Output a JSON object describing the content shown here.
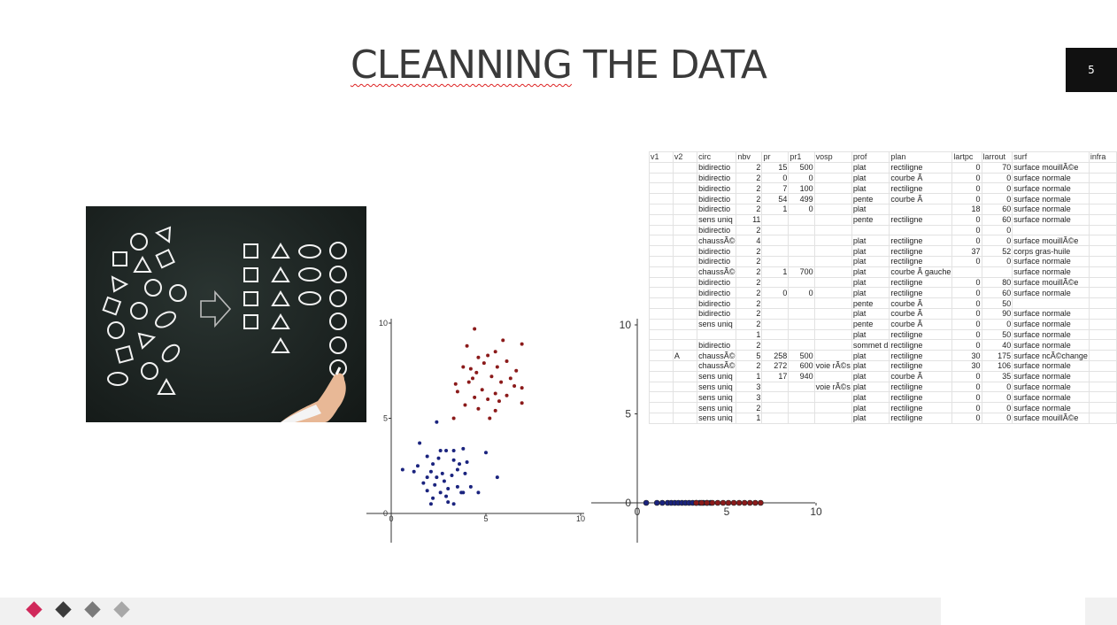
{
  "slide": {
    "title_part1": "CLEANNING",
    "title_part2": " THE DATA",
    "number": "5"
  },
  "spreadsheet": {
    "headers": [
      "v1",
      "v2",
      "circ",
      "nbv",
      "pr",
      "pr1",
      "vosp",
      "prof",
      "plan",
      "lartpc",
      "larrout",
      "surf",
      "infra"
    ],
    "rows": [
      [
        "",
        "",
        "bidirectio",
        "2",
        "15",
        "500",
        "",
        "plat",
        "rectiligne",
        "0",
        "70",
        "surface mouillÃ©e",
        ""
      ],
      [
        "",
        "",
        "bidirectio",
        "2",
        "0",
        "0",
        "",
        "plat",
        "courbe Ã",
        "0",
        "0",
        "surface normale",
        ""
      ],
      [
        "",
        "",
        "bidirectio",
        "2",
        "7",
        "100",
        "",
        "plat",
        "rectiligne",
        "0",
        "0",
        "surface normale",
        ""
      ],
      [
        "",
        "",
        "bidirectio",
        "2",
        "54",
        "499",
        "",
        "pente",
        "courbe Ã",
        "0",
        "0",
        "surface normale",
        ""
      ],
      [
        "",
        "",
        "bidirectio",
        "2",
        "1",
        "0",
        "",
        "plat",
        "",
        "18",
        "60",
        "surface normale",
        ""
      ],
      [
        "",
        "",
        "sens uniq",
        "11",
        "",
        "",
        "",
        "pente",
        "rectiligne",
        "0",
        "60",
        "surface normale",
        ""
      ],
      [
        "",
        "",
        "bidirectio",
        "2",
        "",
        "",
        "",
        "",
        "",
        "0",
        "0",
        "",
        ""
      ],
      [
        "",
        "",
        "chaussÃ©",
        "4",
        "",
        "",
        "",
        "plat",
        "rectiligne",
        "0",
        "0",
        "surface mouillÃ©e",
        ""
      ],
      [
        "",
        "",
        "bidirectio",
        "2",
        "",
        "",
        "",
        "plat",
        "rectiligne",
        "37",
        "52",
        "corps gras-huile",
        ""
      ],
      [
        "",
        "",
        "bidirectio",
        "2",
        "",
        "",
        "",
        "plat",
        "rectiligne",
        "0",
        "0",
        "surface normale",
        ""
      ],
      [
        "",
        "",
        "chaussÃ©",
        "2",
        "1",
        "700",
        "",
        "plat",
        "courbe Ã  gauche",
        "",
        "",
        "surface normale",
        ""
      ],
      [
        "",
        "",
        "bidirectio",
        "2",
        "",
        "",
        "",
        "plat",
        "rectiligne",
        "0",
        "80",
        "surface mouillÃ©e",
        ""
      ],
      [
        "",
        "",
        "bidirectio",
        "2",
        "0",
        "0",
        "",
        "plat",
        "rectiligne",
        "0",
        "60",
        "surface normale",
        ""
      ],
      [
        "",
        "",
        "bidirectio",
        "2",
        "",
        "",
        "",
        "pente",
        "courbe Ã",
        "0",
        "50",
        "",
        ""
      ],
      [
        "",
        "",
        "bidirectio",
        "2",
        "",
        "",
        "",
        "plat",
        "courbe Ã",
        "0",
        "90",
        "surface normale",
        ""
      ],
      [
        "",
        "",
        "sens uniq",
        "2",
        "",
        "",
        "",
        "pente",
        "courbe Ã",
        "0",
        "0",
        "surface normale",
        ""
      ],
      [
        "",
        "",
        "",
        "1",
        "",
        "",
        "",
        "plat",
        "rectiligne",
        "0",
        "50",
        "surface normale",
        ""
      ],
      [
        "",
        "",
        "bidirectio",
        "2",
        "",
        "",
        "",
        "sommet d",
        "rectiligne",
        "0",
        "40",
        "surface normale",
        ""
      ],
      [
        "",
        "A",
        "chaussÃ©",
        "5",
        "258",
        "500",
        "",
        "plat",
        "rectiligne",
        "30",
        "175",
        "surface ncÃ©change",
        ""
      ],
      [
        "",
        "",
        "chaussÃ©",
        "2",
        "272",
        "600",
        "voie rÃ©s",
        "plat",
        "rectiligne",
        "30",
        "106",
        "surface normale",
        ""
      ],
      [
        "",
        "",
        "sens uniq",
        "1",
        "17",
        "940",
        "",
        "plat",
        "courbe Ã",
        "0",
        "35",
        "surface normale",
        ""
      ],
      [
        "",
        "",
        "sens uniq",
        "3",
        "",
        "",
        "voie rÃ©s",
        "plat",
        "rectiligne",
        "0",
        "0",
        "surface normale",
        ""
      ],
      [
        "",
        "",
        "sens uniq",
        "3",
        "",
        "",
        "",
        "plat",
        "rectiligne",
        "0",
        "0",
        "surface normale",
        ""
      ],
      [
        "",
        "",
        "sens uniq",
        "2",
        "",
        "",
        "",
        "plat",
        "rectiligne",
        "0",
        "0",
        "surface normale",
        ""
      ],
      [
        "",
        "",
        "sens uniq",
        "1",
        "",
        "",
        "",
        "plat",
        "rectiligne",
        "0",
        "0",
        "surface mouillÃ©e",
        ""
      ]
    ]
  },
  "chart_data": [
    {
      "type": "scatter",
      "xticks": [
        "0",
        "5",
        "10"
      ],
      "yticks": [
        "0",
        "5",
        "10"
      ],
      "xlim": [
        0,
        10
      ],
      "ylim": [
        0,
        10
      ],
      "series": [
        {
          "color": "#8b1a1a",
          "points": [
            [
              4.4,
              9.7
            ],
            [
              4.0,
              8.8
            ],
            [
              5.9,
              9.1
            ],
            [
              6.9,
              8.9
            ],
            [
              4.6,
              8.2
            ],
            [
              5.5,
              8.5
            ],
            [
              5.1,
              8.3
            ],
            [
              6.1,
              8.0
            ],
            [
              4.9,
              7.9
            ],
            [
              3.8,
              7.7
            ],
            [
              4.2,
              7.6
            ],
            [
              5.6,
              7.7
            ],
            [
              6.6,
              7.5
            ],
            [
              4.5,
              7.4
            ],
            [
              5.3,
              7.2
            ],
            [
              6.3,
              7.1
            ],
            [
              3.4,
              6.8
            ],
            [
              4.1,
              6.9
            ],
            [
              5.8,
              6.9
            ],
            [
              6.5,
              6.7
            ],
            [
              3.5,
              6.4
            ],
            [
              4.8,
              6.5
            ],
            [
              5.5,
              6.3
            ],
            [
              6.9,
              6.6
            ],
            [
              4.4,
              6.1
            ],
            [
              5.1,
              6.0
            ],
            [
              5.7,
              5.9
            ],
            [
              3.9,
              5.7
            ],
            [
              4.6,
              5.5
            ],
            [
              5.5,
              5.4
            ],
            [
              6.9,
              5.8
            ],
            [
              5.2,
              5.0
            ],
            [
              3.3,
              5.0
            ],
            [
              6.1,
              6.2
            ],
            [
              4.3,
              7.1
            ]
          ]
        },
        {
          "color": "#1a237e",
          "points": [
            [
              2.4,
              4.8
            ],
            [
              1.5,
              3.7
            ],
            [
              2.9,
              3.3
            ],
            [
              3.3,
              3.3
            ],
            [
              3.8,
              3.4
            ],
            [
              5.0,
              3.2
            ],
            [
              1.9,
              3.0
            ],
            [
              2.5,
              2.9
            ],
            [
              3.3,
              2.8
            ],
            [
              4.0,
              2.7
            ],
            [
              1.4,
              2.5
            ],
            [
              2.1,
              2.2
            ],
            [
              2.7,
              2.1
            ],
            [
              3.5,
              2.3
            ],
            [
              0.6,
              2.3
            ],
            [
              1.2,
              2.2
            ],
            [
              1.9,
              1.9
            ],
            [
              2.4,
              1.9
            ],
            [
              3.2,
              2.0
            ],
            [
              3.9,
              2.1
            ],
            [
              5.6,
              1.9
            ],
            [
              1.7,
              1.6
            ],
            [
              2.3,
              1.5
            ],
            [
              2.8,
              1.7
            ],
            [
              3.5,
              1.4
            ],
            [
              4.2,
              1.4
            ],
            [
              1.9,
              1.2
            ],
            [
              2.6,
              1.1
            ],
            [
              3.0,
              1.3
            ],
            [
              3.7,
              1.1
            ],
            [
              4.6,
              1.1
            ],
            [
              2.2,
              0.8
            ],
            [
              2.9,
              0.9
            ],
            [
              3.3,
              0.5
            ],
            [
              2.1,
              0.5
            ],
            [
              3.0,
              0.6
            ],
            [
              3.6,
              2.6
            ],
            [
              2.2,
              2.6
            ],
            [
              3.8,
              1.1
            ],
            [
              2.6,
              3.3
            ]
          ]
        }
      ]
    },
    {
      "type": "scatter",
      "xticks": [
        "0",
        "5",
        "10"
      ],
      "yticks": [
        "0",
        "5",
        "10"
      ],
      "xlim": [
        0,
        10
      ],
      "ylim": [
        0,
        10
      ],
      "series": [
        {
          "color": "#1a237e",
          "points": [
            [
              0.5,
              0
            ],
            [
              1.1,
              0
            ],
            [
              1.4,
              0
            ],
            [
              1.7,
              0
            ],
            [
              1.9,
              0
            ],
            [
              2.1,
              0
            ],
            [
              2.3,
              0
            ],
            [
              2.5,
              0
            ],
            [
              2.7,
              0
            ],
            [
              2.9,
              0
            ],
            [
              3.1,
              0
            ],
            [
              3.3,
              0
            ],
            [
              3.5,
              0
            ],
            [
              3.7,
              0
            ],
            [
              3.9,
              0
            ],
            [
              4.1,
              0
            ]
          ]
        },
        {
          "color": "#8b1a1a",
          "points": [
            [
              3.3,
              0
            ],
            [
              3.6,
              0
            ],
            [
              3.9,
              0
            ],
            [
              4.2,
              0
            ],
            [
              4.5,
              0
            ],
            [
              4.8,
              0
            ],
            [
              5.1,
              0
            ],
            [
              5.4,
              0
            ],
            [
              5.7,
              0
            ],
            [
              6.0,
              0
            ],
            [
              6.3,
              0
            ],
            [
              6.6,
              0
            ],
            [
              6.9,
              0
            ]
          ]
        }
      ]
    }
  ],
  "footer": {
    "diamond_colors": [
      "#d0285a",
      "#3b3b3b",
      "#7a7a7a",
      "#a8a8a8"
    ]
  }
}
